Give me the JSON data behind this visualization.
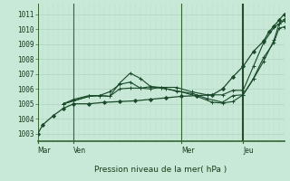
{
  "xlabel": "Pression niveau de la mer( hPa )",
  "bg_color": "#c8e8d8",
  "grid_color_h": "#b0d4c0",
  "grid_color_v": "#c0dcc8",
  "line_color": "#1a4a2a",
  "ylim": [
    1002.5,
    1011.7
  ],
  "yticks": [
    1003,
    1004,
    1005,
    1006,
    1007,
    1008,
    1009,
    1010,
    1011
  ],
  "xlim": [
    0,
    48
  ],
  "series": [
    {
      "x": [
        0,
        1,
        3,
        5,
        7,
        10,
        13,
        16,
        19,
        22,
        25,
        28,
        31,
        34,
        36,
        38,
        40,
        42,
        44,
        45,
        46,
        47,
        48
      ],
      "y": [
        1003.0,
        1003.6,
        1004.2,
        1004.7,
        1005.0,
        1005.0,
        1005.1,
        1005.15,
        1005.2,
        1005.3,
        1005.4,
        1005.5,
        1005.55,
        1005.6,
        1006.0,
        1006.8,
        1007.5,
        1008.5,
        1009.2,
        1009.8,
        1010.2,
        1010.6,
        1011.0
      ],
      "marker": "D",
      "ms": 2.0,
      "lw": 0.9
    },
    {
      "x": [
        5,
        7,
        10,
        12,
        14,
        16,
        18,
        20,
        22,
        24,
        27,
        30,
        33,
        36,
        38,
        40,
        42,
        44,
        46,
        47,
        48
      ],
      "y": [
        1005.0,
        1005.2,
        1005.5,
        1005.55,
        1005.8,
        1006.3,
        1006.45,
        1006.05,
        1006.0,
        1006.1,
        1006.1,
        1005.8,
        1005.6,
        1005.6,
        1005.9,
        1005.9,
        1007.5,
        1009.1,
        1010.1,
        1010.35,
        1010.55
      ],
      "marker": "+",
      "ms": 3.5,
      "lw": 0.8
    },
    {
      "x": [
        5,
        7,
        10,
        12,
        14,
        16,
        18,
        20,
        22,
        25,
        28,
        31,
        34,
        36,
        38,
        40,
        42,
        44,
        46,
        47,
        48
      ],
      "y": [
        1005.0,
        1005.2,
        1005.5,
        1005.55,
        1005.5,
        1006.4,
        1007.05,
        1006.7,
        1006.15,
        1006.0,
        1005.8,
        1005.5,
        1005.1,
        1005.05,
        1005.15,
        1005.6,
        1006.7,
        1008.1,
        1009.1,
        1010.05,
        1010.15
      ],
      "marker": "+",
      "ms": 3.5,
      "lw": 0.8
    },
    {
      "x": [
        5,
        7,
        10,
        12,
        14,
        16,
        18,
        20,
        22,
        24,
        27,
        30,
        33,
        36,
        38,
        40,
        42,
        44,
        46,
        47,
        48
      ],
      "y": [
        1005.0,
        1005.3,
        1005.55,
        1005.55,
        1005.5,
        1006.0,
        1006.05,
        1006.05,
        1006.15,
        1006.1,
        1005.85,
        1005.7,
        1005.35,
        1005.1,
        1005.55,
        1005.6,
        1006.65,
        1007.85,
        1009.25,
        1010.35,
        1010.65
      ],
      "marker": "+",
      "ms": 3.5,
      "lw": 0.8
    }
  ],
  "vlines": [
    {
      "x": 7,
      "color": "#336633",
      "lw": 0.8
    },
    {
      "x": 28,
      "color": "#336633",
      "lw": 0.8
    },
    {
      "x": 40,
      "color": "#2a4a2a",
      "lw": 1.5
    }
  ],
  "day_ticks": [
    {
      "x": 0,
      "label": "Mar"
    },
    {
      "x": 7,
      "label": "Ven"
    },
    {
      "x": 28,
      "label": "Mer"
    },
    {
      "x": 40,
      "label": "Jeu"
    }
  ]
}
